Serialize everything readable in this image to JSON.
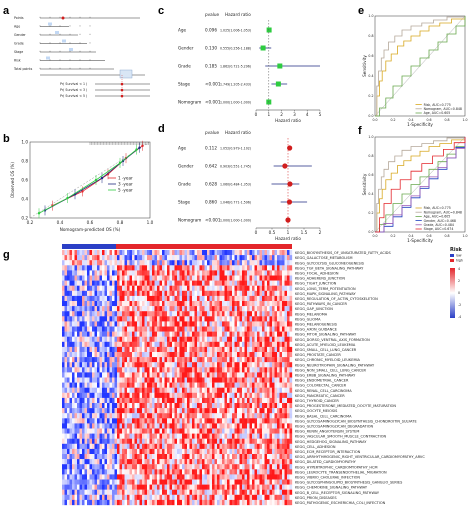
{
  "panels": {
    "a": "a",
    "b": "b",
    "c": "c",
    "d": "d",
    "e": "e",
    "f": "f",
    "g": "g"
  },
  "colors": {
    "low": "#2b3fc6",
    "high": "#e3262b",
    "green": "#2ecc40",
    "navy": "#1f2a80",
    "red": "#d11d1d"
  },
  "chart_data": [
    {
      "panel": "a",
      "type": "table",
      "rows": [
        "Points",
        "Age",
        "Gender",
        "Grade",
        "Stage",
        "Risk",
        "Total points"
      ],
      "risk_labels": [
        "Pr( Survival < 1 )",
        "Pr( Survival < 3 )",
        "Pr( Survival < 5 )"
      ]
    },
    {
      "panel": "b",
      "type": "line",
      "xlabel": "Nomogram-predicted OS (%)",
      "ylabel": "Observed OS (%)",
      "xlim": [
        0.2,
        1.0
      ],
      "ylim": [
        0.2,
        1.0
      ],
      "x_ticks": [
        "0.2",
        "0.4",
        "0.6",
        "0.8",
        "1.0"
      ],
      "y_ticks": [
        "0.2",
        "0.4",
        "0.6",
        "0.8",
        "1.0"
      ],
      "series": [
        {
          "name": "1 -year",
          "color": "#e3262b",
          "x": [
            0.35,
            0.55,
            0.72,
            0.84,
            0.95
          ],
          "y": [
            0.33,
            0.48,
            0.66,
            0.83,
            0.96
          ]
        },
        {
          "name": "3 -year",
          "color": "#1f2a80",
          "x": [
            0.3,
            0.5,
            0.68,
            0.82,
            0.93
          ],
          "y": [
            0.28,
            0.45,
            0.62,
            0.8,
            0.94
          ]
        },
        {
          "name": "5 -year",
          "color": "#2ecc40",
          "x": [
            0.26,
            0.45,
            0.64,
            0.8,
            0.91
          ],
          "y": [
            0.25,
            0.41,
            0.6,
            0.78,
            0.92
          ]
        }
      ]
    },
    {
      "panel": "c",
      "type": "scatter",
      "xlabel": "Hazard ratio",
      "header": [
        "pvalue",
        "Hazard ratio"
      ],
      "xlim": [
        0,
        5
      ],
      "x_ticks": [
        "0",
        "1",
        "2",
        "3",
        "4",
        "5"
      ],
      "ref": 1,
      "rows": [
        {
          "label": "Age",
          "p": "0.096",
          "hr_text": "1.025(1.006-1.053)",
          "hr": 1.025,
          "lo": 1.006,
          "hi": 1.053
        },
        {
          "label": "Gender",
          "p": "0.130",
          "hr_text": "0.555(0.256-1.188)",
          "hr": 0.555,
          "lo": 0.256,
          "hi": 1.188
        },
        {
          "label": "Grade",
          "p": "0.185",
          "hr_text": "1.862(0.721-5.296)",
          "hr": 1.862,
          "lo": 0.721,
          "hi": 5.296
        },
        {
          "label": "Stage",
          "p": "<0.001",
          "hr_text": "1.749(1.205-2.433)",
          "hr": 1.749,
          "lo": 1.205,
          "hi": 2.433
        },
        {
          "label": "Nomogram",
          "p": "<0.001",
          "hr_text": "1.000(1.000-1.000)",
          "hr": 1.0,
          "lo": 1.0,
          "hi": 1.0
        }
      ]
    },
    {
      "panel": "d",
      "type": "scatter",
      "xlabel": "Hazard ratio",
      "header": [
        "pvalue",
        "Hazard ratio"
      ],
      "xlim": [
        0,
        2
      ],
      "x_ticks": [
        "0",
        "0.5",
        "1",
        "1.5",
        "2"
      ],
      "ref": 1,
      "rows": [
        {
          "label": "Age",
          "p": "0.112",
          "hr_text": "1.052(0.979-1.102)",
          "hr": 1.052,
          "lo": 0.979,
          "hi": 1.102
        },
        {
          "label": "Gender",
          "p": "0.642",
          "hr_text": "0.903(0.551-1.745)",
          "hr": 0.903,
          "lo": 0.551,
          "hi": 1.745
        },
        {
          "label": "Grade",
          "p": "0.628",
          "hr_text": "1.060(0.484-1.353)",
          "hr": 1.06,
          "lo": 0.484,
          "hi": 1.353
        },
        {
          "label": "Stage",
          "p": "0.860",
          "hr_text": "1.046(0.771-1.596)",
          "hr": 1.046,
          "lo": 0.771,
          "hi": 1.596
        },
        {
          "label": "Nomogram",
          "p": "<0.001",
          "hr_text": "1.000(1.000-1.000)",
          "hr": 1.0,
          "lo": 1.0,
          "hi": 1.0
        }
      ]
    },
    {
      "panel": "e",
      "type": "line",
      "xlabel": "1-Specificity",
      "ylabel": "Sensitivity",
      "xlim": [
        0,
        1
      ],
      "ylim": [
        0,
        1
      ],
      "x_ticks": [
        "0.0",
        "0.2",
        "0.4",
        "0.6",
        "0.8",
        "1.0"
      ],
      "y_ticks": [
        "0.0",
        "0.2",
        "0.4",
        "0.6",
        "0.8",
        "1.0"
      ],
      "series": [
        {
          "name": "Risk, AUC=0.775",
          "color": "#d8a820",
          "x": [
            0,
            0.02,
            0.05,
            0.08,
            0.12,
            0.18,
            0.25,
            0.32,
            0.4,
            0.5,
            0.6,
            0.72,
            0.85,
            1
          ],
          "y": [
            0,
            0.2,
            0.35,
            0.45,
            0.55,
            0.62,
            0.7,
            0.75,
            0.8,
            0.85,
            0.9,
            0.93,
            0.97,
            1
          ]
        },
        {
          "name": "Nomogram, AUC=0.848",
          "color": "#b5a89a",
          "x": [
            0,
            0.02,
            0.04,
            0.07,
            0.1,
            0.15,
            0.22,
            0.3,
            0.4,
            0.52,
            0.65,
            0.8,
            1
          ],
          "y": [
            0,
            0.3,
            0.45,
            0.58,
            0.66,
            0.74,
            0.8,
            0.86,
            0.9,
            0.93,
            0.96,
            0.99,
            1
          ]
        },
        {
          "name": "Age, AUC=0.605",
          "color": "#6aa84f",
          "x": [
            0,
            0.05,
            0.12,
            0.2,
            0.3,
            0.4,
            0.5,
            0.6,
            0.7,
            0.8,
            0.9,
            1
          ],
          "y": [
            0,
            0.08,
            0.18,
            0.3,
            0.4,
            0.5,
            0.58,
            0.66,
            0.74,
            0.82,
            0.9,
            1
          ]
        }
      ]
    },
    {
      "panel": "f",
      "type": "line",
      "xlabel": "1-Specificity",
      "ylabel": "Sensitivity",
      "xlim": [
        0,
        1
      ],
      "ylim": [
        0,
        1
      ],
      "x_ticks": [
        "0.0",
        "0.2",
        "0.4",
        "0.6",
        "0.8",
        "1.0"
      ],
      "y_ticks": [
        "0.0",
        "0.2",
        "0.4",
        "0.6",
        "0.8",
        "1.0"
      ],
      "series": [
        {
          "name": "Risk, AUC=0.775",
          "color": "#d8a820",
          "x": [
            0,
            0.02,
            0.05,
            0.08,
            0.12,
            0.18,
            0.25,
            0.32,
            0.4,
            0.5,
            0.6,
            0.72,
            0.85,
            1
          ],
          "y": [
            0,
            0.2,
            0.35,
            0.45,
            0.55,
            0.62,
            0.7,
            0.75,
            0.8,
            0.85,
            0.9,
            0.93,
            0.97,
            1
          ]
        },
        {
          "name": "Nomogram, AUC=0.848",
          "color": "#b5a89a",
          "x": [
            0,
            0.02,
            0.04,
            0.07,
            0.1,
            0.15,
            0.22,
            0.3,
            0.4,
            0.52,
            0.65,
            0.8,
            1
          ],
          "y": [
            0,
            0.3,
            0.45,
            0.58,
            0.66,
            0.74,
            0.8,
            0.86,
            0.9,
            0.93,
            0.96,
            0.99,
            1
          ]
        },
        {
          "name": "Age, AUC=0.605",
          "color": "#6aa84f",
          "x": [
            0,
            0.05,
            0.12,
            0.2,
            0.3,
            0.4,
            0.5,
            0.6,
            0.7,
            0.8,
            0.9,
            1
          ],
          "y": [
            0,
            0.08,
            0.18,
            0.3,
            0.4,
            0.5,
            0.58,
            0.66,
            0.74,
            0.82,
            0.9,
            1
          ]
        },
        {
          "name": "Gender, AUC=0.468",
          "color": "#1f3fbf",
          "x": [
            0,
            0.1,
            0.2,
            0.3,
            0.4,
            0.5,
            0.6,
            0.7,
            0.8,
            0.9,
            1
          ],
          "y": [
            0,
            0.06,
            0.16,
            0.26,
            0.36,
            0.46,
            0.56,
            0.66,
            0.78,
            0.89,
            1
          ]
        },
        {
          "name": "Grade, AUC=0.484",
          "color": "#9b59b6",
          "x": [
            0,
            0.1,
            0.2,
            0.3,
            0.4,
            0.5,
            0.6,
            0.7,
            0.8,
            0.9,
            1
          ],
          "y": [
            0,
            0.09,
            0.18,
            0.28,
            0.38,
            0.48,
            0.58,
            0.68,
            0.78,
            0.88,
            1
          ]
        },
        {
          "name": "Stage, AUC=0.674",
          "color": "#e3262b",
          "x": [
            0,
            0.05,
            0.1,
            0.18,
            0.28,
            0.4,
            0.52,
            0.64,
            0.76,
            0.88,
            1
          ],
          "y": [
            0,
            0.15,
            0.3,
            0.45,
            0.55,
            0.64,
            0.72,
            0.8,
            0.87,
            0.94,
            1
          ]
        }
      ]
    },
    {
      "panel": "g",
      "type": "heatmap",
      "group_label": "Risk",
      "groups": [
        "low",
        "high"
      ],
      "legend_ticks": [
        "4",
        "2",
        "0",
        "-2",
        "-4"
      ],
      "rows": [
        "KEGG_BIOSYNTHESIS_OF_UNSATURATED_FATTY_ACIDS",
        "KEGG_GALACTOSE_METABOLISM",
        "KEGG_GLYCOLYSIS_GLUCONEOGENESIS",
        "KEGG_TGF_BETA_SIGNALING_PATHWAY",
        "KEGG_FOCAL_ADHESION",
        "KEGG_ADHERENS_JUNCTION",
        "KEGG_TIGHT_JUNCTION",
        "KEGG_LONG_TERM_POTENTIATION",
        "KEGG_MAPK_SIGNALING_PATHWAY",
        "KEGG_REGULATION_OF_ACTIN_CYTOSKELETON",
        "KEGG_PATHWAYS_IN_CANCER",
        "KEGG_GAP_JUNCTION",
        "KEGG_MELANOMA",
        "KEGG_GLIOMA",
        "KEGG_MELANOGENESIS",
        "KEGG_AXON_GUIDANCE",
        "KEGG_MTOR_SIGNALING_PATHWAY",
        "KEGG_DORSO_VENTRAL_AXIS_FORMATION",
        "KEGG_ACUTE_MYELOID_LEUKEMIA",
        "KEGG_SMALL_CELL_LUNG_CANCER",
        "KEGG_PROSTATE_CANCER",
        "KEGG_CHRONIC_MYELOID_LEUKEMIA",
        "KEGG_NEUROTROPHIN_SIGNALING_PATHWAY",
        "KEGG_NON_SMALL_CELL_LUNG_CANCER",
        "KEGG_ERBB_SIGNALING_PATHWAY",
        "KEGG_ENDOMETRIAL_CANCER",
        "KEGG_COLORECTAL_CANCER",
        "KEGG_RENAL_CELL_CARCINOMA",
        "KEGG_PANCREATIC_CANCER",
        "KEGG_THYROID_CANCER",
        "KEGG_PROGESTERONE_MEDIATED_OOCYTE_MATURATION",
        "KEGG_OOCYTE_MEIOSIS",
        "KEGG_BASAL_CELL_CARCINOMA",
        "KEGG_GLYCOSAMINOGLYCAN_BIOSYNTHESIS_CHONDROITIN_SULFATE",
        "KEGG_GLYCOSAMINOGLYCAN_DEGRADATION",
        "KEGG_RENIN_ANGIOTENSIN_SYSTEM",
        "KEGG_VASCULAR_SMOOTH_MUSCLE_CONTRACTION",
        "KEGG_HEDGEHOG_SIGNALING_PATHWAY",
        "KEGG_CELL_ADHESION",
        "KEGG_ECM_RECEPTOR_INTERACTION",
        "KEGG_ARRHYTHMOGENIC_RIGHT_VENTRICULAR_CARDIOMYOPATHY_ARVC",
        "KEGG_DILATED_CARDIOMYOPATHY",
        "KEGG_HYPERTROPHIC_CARDIOMYOPATHY_HCM",
        "KEGG_LEUKOCYTE_TRANSENDOTHELIAL_MIGRATION",
        "KEGG_VIBRIO_CHOLERAE_INFECTION",
        "KEGG_GLYCOSPHINGOLIPID_BIOSYNTHESIS_GANGLIO_SERIES",
        "KEGG_CHEMOKINE_SIGNALING_PATHWAY",
        "KEGG_B_CELL_RECEPTOR_SIGNALING_PATHWAY",
        "KEGG_PRION_DISEASES",
        "KEGG_PATHOGENIC_ESCHERICHIA_COLI_INFECTION"
      ]
    }
  ]
}
